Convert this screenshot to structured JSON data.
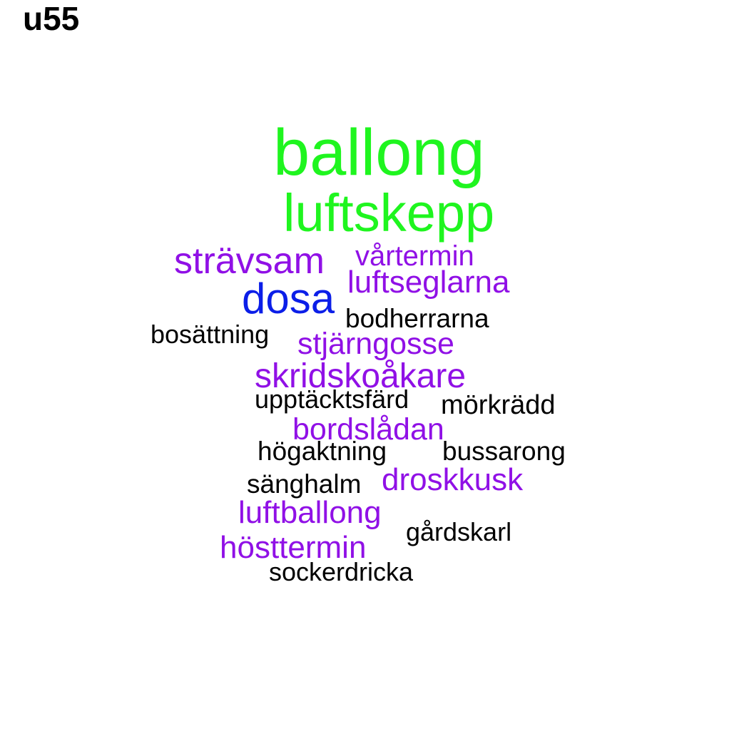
{
  "title": "u55",
  "colors": {
    "green": "#1ff51f",
    "purple": "#9010e6",
    "blue": "#0b1ee8",
    "black": "#000000"
  },
  "words": [
    {
      "text": "ballong",
      "color": "green"
    },
    {
      "text": "luftskepp",
      "color": "green"
    },
    {
      "text": "strävsam",
      "color": "purple"
    },
    {
      "text": "vårtermin",
      "color": "purple"
    },
    {
      "text": "luftseglarna",
      "color": "purple"
    },
    {
      "text": "dosa",
      "color": "blue"
    },
    {
      "text": "bodherrarna",
      "color": "black"
    },
    {
      "text": "bosättning",
      "color": "black"
    },
    {
      "text": "stjärngosse",
      "color": "purple"
    },
    {
      "text": "skridskoåkare",
      "color": "purple"
    },
    {
      "text": "upptäcktsfärd",
      "color": "black"
    },
    {
      "text": "mörkrädd",
      "color": "black"
    },
    {
      "text": "bordslådan",
      "color": "purple"
    },
    {
      "text": "högaktning",
      "color": "black"
    },
    {
      "text": "bussarong",
      "color": "black"
    },
    {
      "text": "sänghalm",
      "color": "black"
    },
    {
      "text": "droskkusk",
      "color": "purple"
    },
    {
      "text": "luftballong",
      "color": "purple"
    },
    {
      "text": "gårdskarl",
      "color": "black"
    },
    {
      "text": "hösttermin",
      "color": "purple"
    },
    {
      "text": "sockerdricka",
      "color": "black"
    }
  ]
}
